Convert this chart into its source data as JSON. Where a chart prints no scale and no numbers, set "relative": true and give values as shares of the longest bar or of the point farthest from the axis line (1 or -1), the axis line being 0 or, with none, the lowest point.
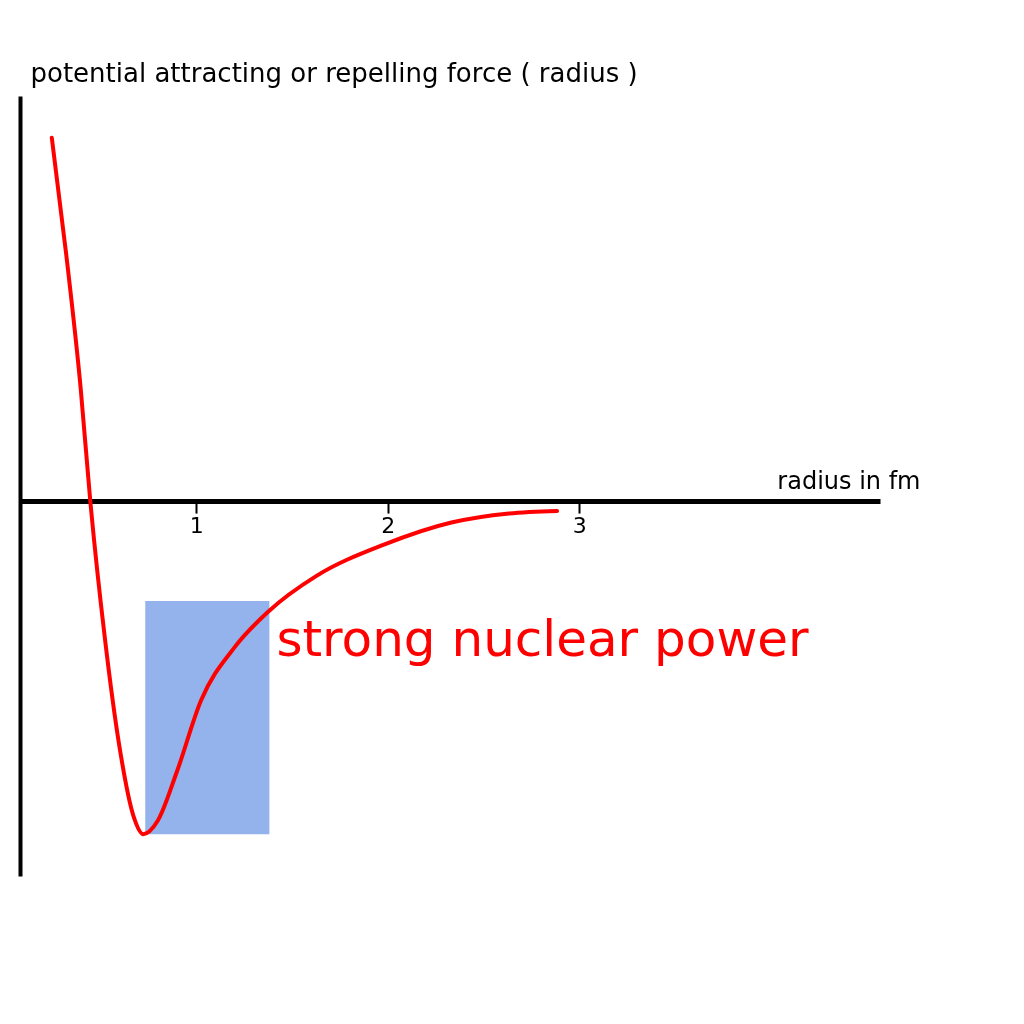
{
  "chart_data": {
    "type": "line",
    "relative": true,
    "ylabel": "potential attracting or repelling force ( radius )",
    "xlabel": "radius in fm",
    "xlim": [
      0.08,
      4.57
    ],
    "xticks": [
      1,
      2,
      3
    ],
    "marker": "none",
    "line_style": "solid",
    "bands": [
      {
        "axis": "x",
        "from": 0.734,
        "to": 1.382,
        "color": "#88aaea"
      }
    ],
    "series": [
      {
        "name": "strong nuclear power",
        "color": "#ff0000",
        "x": [
          0.246,
          0.322,
          0.397,
          0.447,
          0.523,
          0.598,
          0.673,
          0.724,
          0.799,
          0.899,
          1.025,
          1.201,
          1.377,
          1.628,
          1.98,
          2.332,
          2.633,
          2.884
        ],
        "values": [
          1.0,
          0.676,
          0.309,
          0,
          -0.377,
          -0.672,
          -0.868,
          -0.917,
          -0.88,
          -0.745,
          -0.549,
          -0.402,
          -0.304,
          -0.206,
          -0.12,
          -0.059,
          -0.034,
          -0.027
        ]
      }
    ]
  }
}
